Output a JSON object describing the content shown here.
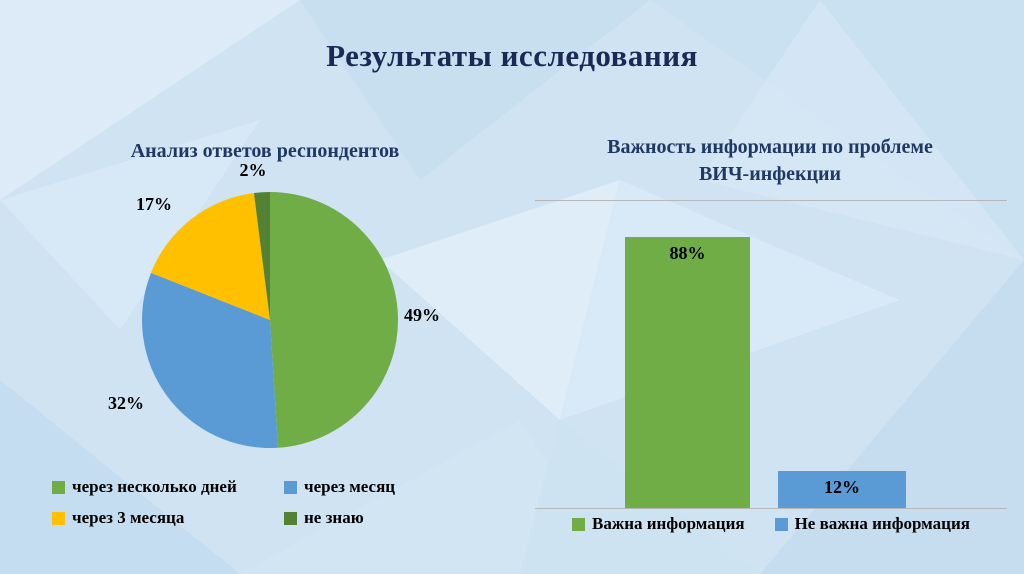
{
  "slide": {
    "title": "Результаты исследования"
  },
  "chart_data": [
    {
      "type": "pie",
      "title": "Анализ ответов респондентов",
      "labels": [
        "через несколько дней",
        "через месяц",
        "через 3 месяца",
        "не знаю"
      ],
      "values": [
        49,
        32,
        17,
        2
      ],
      "data_labels": [
        "49%",
        "32%",
        "17%",
        "2%"
      ],
      "colors": [
        "#70ad47",
        "#5b9bd5",
        "#ffc000",
        "#548235"
      ],
      "legend_position": "bottom",
      "start_angle_deg": -90,
      "direction": "clockwise"
    },
    {
      "type": "bar",
      "title": "Важность информации по проблеме ВИЧ-инфекции",
      "categories": [
        "Важна информация",
        "Не важна информация"
      ],
      "values": [
        88,
        12
      ],
      "data_labels": [
        "88%",
        "12%"
      ],
      "colors": [
        "#70ad47",
        "#5b9bd5"
      ],
      "ylim": [
        0,
        100
      ],
      "grid": "top-and-baseline",
      "legend_position": "bottom"
    }
  ]
}
